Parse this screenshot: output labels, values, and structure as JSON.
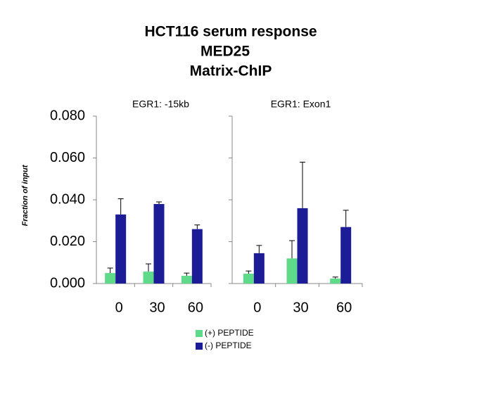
{
  "chart_data": {
    "type": "bar",
    "title": [
      "HCT116 serum response",
      "MED25",
      "Matrix-ChIP"
    ],
    "y_label": "Fraction of input",
    "ylim": [
      0,
      0.08
    ],
    "yticks": [
      {
        "value": 0,
        "label": "0.000"
      },
      {
        "value": 0.02,
        "label": "0.020"
      },
      {
        "value": 0.04,
        "label": "0.040"
      },
      {
        "value": 0.06,
        "label": "0.060"
      },
      {
        "value": 0.08,
        "label": "0.080"
      }
    ],
    "panels": [
      {
        "subtitle": "EGR1: -15kb",
        "categories": [
          "0",
          "30",
          "60"
        ],
        "series": [
          {
            "name": "(+) PEPTIDE",
            "color": "#5fd98a",
            "values": [
              0.005,
              0.0057,
              0.0037
            ],
            "errors": [
              0.0024,
              0.0037,
              0.0013
            ]
          },
          {
            "name": "(-) PEPTIDE",
            "color": "#1c1c96",
            "values": [
              0.033,
              0.038,
              0.026
            ],
            "errors": [
              0.0075,
              0.001,
              0.002
            ]
          }
        ]
      },
      {
        "subtitle": "EGR1: Exon1",
        "categories": [
          "0",
          "30",
          "60"
        ],
        "series": [
          {
            "name": "(+) PEPTIDE",
            "color": "#5fd98a",
            "values": [
              0.0047,
              0.012,
              0.0024
            ],
            "errors": [
              0.0013,
              0.0085,
              0.0007
            ]
          },
          {
            "name": "(-) PEPTIDE",
            "color": "#1c1c96",
            "values": [
              0.0145,
              0.036,
              0.027
            ],
            "errors": [
              0.0037,
              0.022,
              0.008
            ]
          }
        ]
      }
    ]
  }
}
